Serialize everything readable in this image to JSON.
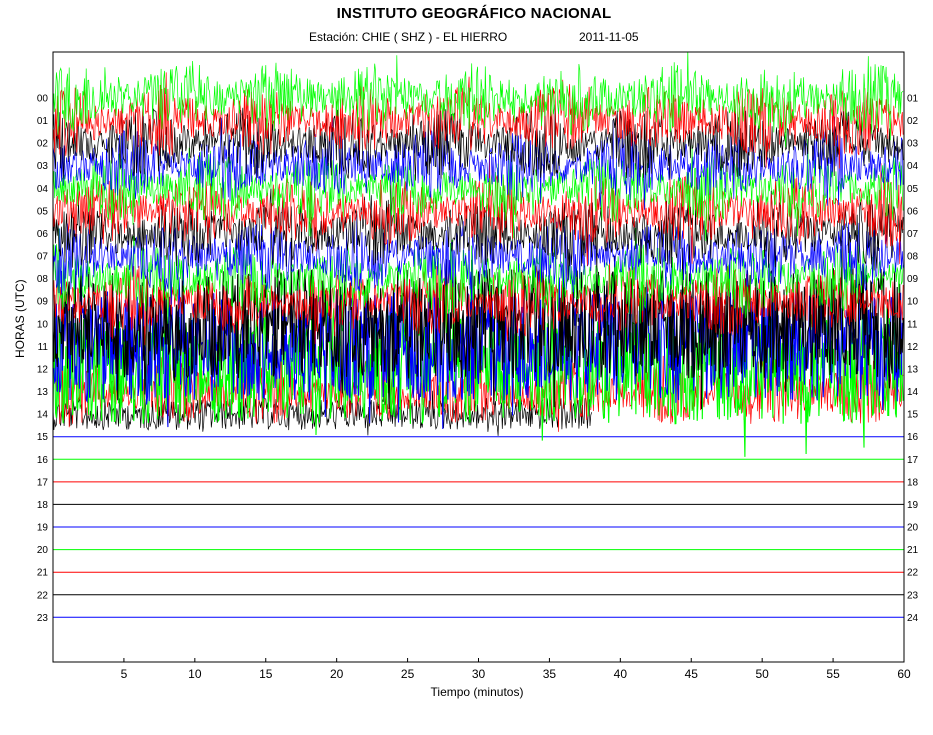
{
  "chart_data": {
    "type": "line",
    "title": "INSTITUTO GEOGRÁFICO NACIONAL",
    "station_label": "Estación:  CHIE ( SHZ ) - EL HIERRO",
    "date": "2011-11-05",
    "xlabel": "Tiempo (minutos)",
    "ylabel": "HORAS (UTC)",
    "xlim": [
      0,
      60
    ],
    "x_ticks": [
      5,
      10,
      15,
      20,
      25,
      30,
      35,
      40,
      45,
      50,
      55,
      60
    ],
    "left_hour_labels": [
      "00",
      "01",
      "02",
      "03",
      "04",
      "05",
      "06",
      "07",
      "08",
      "09",
      "10",
      "11",
      "12",
      "13",
      "14",
      "15",
      "16",
      "17",
      "18",
      "19",
      "20",
      "21",
      "22",
      "23"
    ],
    "right_hour_labels": [
      "01",
      "02",
      "03",
      "04",
      "05",
      "06",
      "07",
      "08",
      "09",
      "10",
      "11",
      "12",
      "13",
      "14",
      "15",
      "16",
      "17",
      "18",
      "19",
      "20",
      "21",
      "22",
      "23",
      "24"
    ],
    "trace_color_cycle": [
      "#000000",
      "#0000ff",
      "#00ff00",
      "#ff0000"
    ],
    "saturated_hours": [
      10,
      11,
      12
    ],
    "data_end": {
      "hour": 14,
      "minute": 38
    },
    "series": [
      {
        "hour": 0,
        "minutes_recorded": 60
      },
      {
        "hour": 1,
        "minutes_recorded": 60
      },
      {
        "hour": 2,
        "minutes_recorded": 60
      },
      {
        "hour": 3,
        "minutes_recorded": 60
      },
      {
        "hour": 4,
        "minutes_recorded": 60
      },
      {
        "hour": 5,
        "minutes_recorded": 60
      },
      {
        "hour": 6,
        "minutes_recorded": 60
      },
      {
        "hour": 7,
        "minutes_recorded": 60
      },
      {
        "hour": 8,
        "minutes_recorded": 60
      },
      {
        "hour": 9,
        "minutes_recorded": 60
      },
      {
        "hour": 10,
        "minutes_recorded": 60
      },
      {
        "hour": 11,
        "minutes_recorded": 60
      },
      {
        "hour": 12,
        "minutes_recorded": 60
      },
      {
        "hour": 13,
        "minutes_recorded": 60
      },
      {
        "hour": 14,
        "minutes_recorded": 38
      },
      {
        "hour": 15,
        "minutes_recorded": 0
      },
      {
        "hour": 16,
        "minutes_recorded": 0
      },
      {
        "hour": 17,
        "minutes_recorded": 0
      },
      {
        "hour": 18,
        "minutes_recorded": 0
      },
      {
        "hour": 19,
        "minutes_recorded": 0
      },
      {
        "hour": 20,
        "minutes_recorded": 0
      },
      {
        "hour": 21,
        "minutes_recorded": 0
      },
      {
        "hour": 22,
        "minutes_recorded": 0
      },
      {
        "hour": 23,
        "minutes_recorded": 0
      }
    ]
  }
}
